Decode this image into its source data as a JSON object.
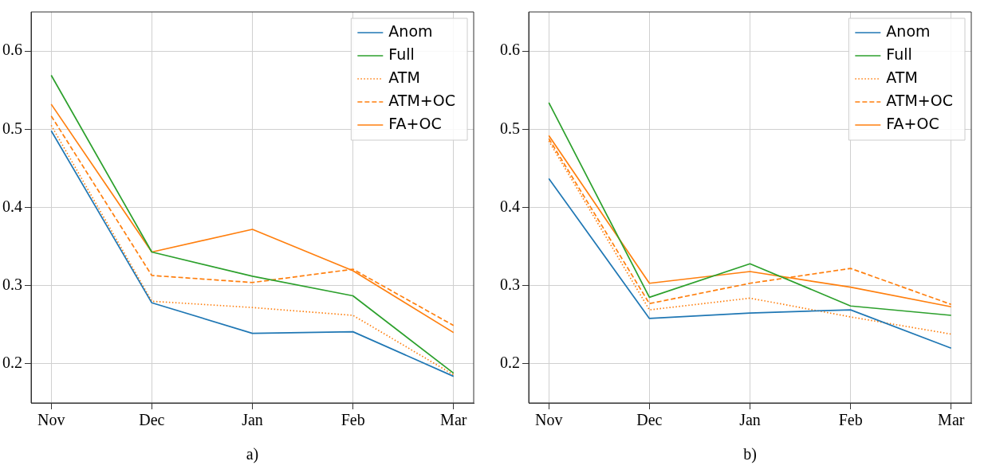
{
  "chart_data": [
    {
      "type": "line",
      "xlabel": "a)",
      "categories": [
        "Nov",
        "Dec",
        "Jan",
        "Feb",
        "Mar"
      ],
      "ylim": [
        0.15,
        0.65
      ],
      "yticks": [
        0.2,
        0.3,
        0.4,
        0.5,
        0.6
      ],
      "grid": true,
      "legend": "top right",
      "marker": "none",
      "series": [
        {
          "name": "Anom",
          "color": "#1f77b4",
          "line_style": "solid",
          "values": [
            0.498,
            0.278,
            0.239,
            0.241,
            0.184
          ]
        },
        {
          "name": "Full",
          "color": "#2ca02c",
          "line_style": "solid",
          "values": [
            0.569,
            0.343,
            0.312,
            0.287,
            0.188
          ]
        },
        {
          "name": "ATM",
          "color": "#ff7f0e",
          "line_style": "dotted",
          "values": [
            0.505,
            0.28,
            0.272,
            0.262,
            0.186
          ]
        },
        {
          "name": "ATM+OC",
          "color": "#ff7f0e",
          "line_style": "dashed",
          "values": [
            0.517,
            0.313,
            0.304,
            0.321,
            0.249
          ]
        },
        {
          "name": "FA+OC",
          "color": "#ff7f0e",
          "line_style": "solid",
          "values": [
            0.532,
            0.343,
            0.372,
            0.319,
            0.24
          ]
        }
      ]
    },
    {
      "type": "line",
      "xlabel": "b)",
      "categories": [
        "Nov",
        "Dec",
        "Jan",
        "Feb",
        "Mar"
      ],
      "ylim": [
        0.15,
        0.65
      ],
      "yticks": [
        0.2,
        0.3,
        0.4,
        0.5,
        0.6
      ],
      "grid": true,
      "legend": "top right",
      "marker": "none",
      "series": [
        {
          "name": "Anom",
          "color": "#1f77b4",
          "line_style": "solid",
          "values": [
            0.437,
            0.258,
            0.265,
            0.269,
            0.22
          ]
        },
        {
          "name": "Full",
          "color": "#2ca02c",
          "line_style": "solid",
          "values": [
            0.534,
            0.285,
            0.328,
            0.274,
            0.262
          ]
        },
        {
          "name": "ATM",
          "color": "#ff7f0e",
          "line_style": "dotted",
          "values": [
            0.485,
            0.269,
            0.284,
            0.26,
            0.238
          ]
        },
        {
          "name": "ATM+OC",
          "color": "#ff7f0e",
          "line_style": "dashed",
          "values": [
            0.488,
            0.277,
            0.303,
            0.322,
            0.276
          ]
        },
        {
          "name": "FA+OC",
          "color": "#ff7f0e",
          "line_style": "solid",
          "values": [
            0.492,
            0.303,
            0.318,
            0.298,
            0.273
          ]
        }
      ]
    }
  ]
}
